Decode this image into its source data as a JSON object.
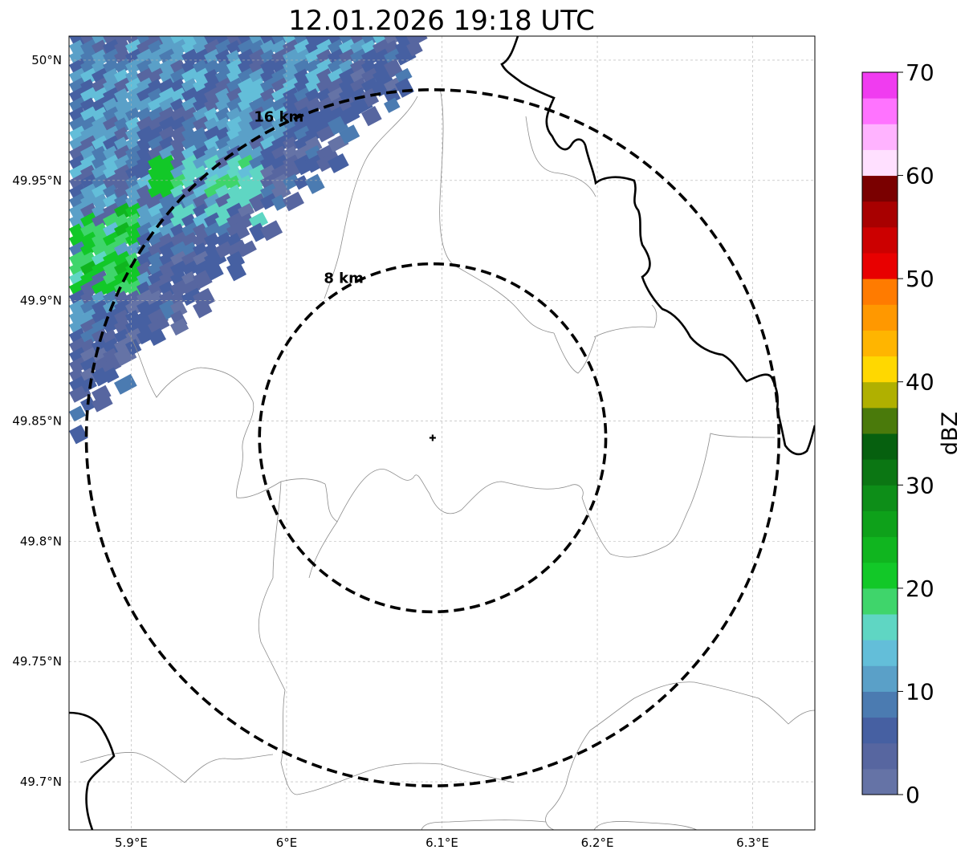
{
  "title": "12.01.2026 19:18 UTC",
  "map": {
    "extent": {
      "lon": [
        5.86,
        6.34
      ],
      "lat": [
        49.68,
        50.01
      ]
    },
    "gridlines": true,
    "lon_ticks": [
      {
        "value": 5.9,
        "label": "5.9°E"
      },
      {
        "value": 6.0,
        "label": "6°E"
      },
      {
        "value": 6.1,
        "label": "6.1°E"
      },
      {
        "value": 6.2,
        "label": "6.2°E"
      },
      {
        "value": 6.3,
        "label": "6.3°E"
      }
    ],
    "lat_ticks": [
      {
        "value": 50.0,
        "label": "50°N"
      },
      {
        "value": 49.95,
        "label": "49.95°N"
      },
      {
        "value": 49.9,
        "label": "49.9°N"
      },
      {
        "value": 49.85,
        "label": "49.85°N"
      },
      {
        "value": 49.8,
        "label": "49.8°N"
      },
      {
        "value": 49.75,
        "label": "49.75°N"
      },
      {
        "value": 49.7,
        "label": "49.7°N"
      }
    ],
    "center": {
      "lon": 6.094,
      "lat": 49.843
    },
    "center_marker": "plus-marker",
    "rings": [
      {
        "radius_km": 8,
        "label": "8 km"
      },
      {
        "radius_km": 16,
        "label": "16 km"
      }
    ],
    "ring_style": {
      "color": "#000000",
      "dash": "dashed"
    },
    "boundary_colors": {
      "national": "#000000",
      "regional": "#8c8c8c"
    },
    "reflectivity_region": "north-west corner"
  },
  "colorbar": {
    "label": "dBZ",
    "min": 0,
    "max": 70,
    "step": 2.5,
    "tick_values": [
      0,
      10,
      20,
      30,
      40,
      50,
      60,
      70
    ],
    "tick_labels": [
      "0",
      "10",
      "20",
      "30",
      "40",
      "50",
      "60",
      "70"
    ],
    "colors": [
      "#6573a6",
      "#5766a0",
      "#4660a2",
      "#4b7bb1",
      "#5aa0c8",
      "#63bed9",
      "#5fd6c3",
      "#3fd56b",
      "#12c828",
      "#10b51f",
      "#0ea11a",
      "#0d8e18",
      "#0b7613",
      "#06600f",
      "#4a7a0b",
      "#b0b000",
      "#ffd800",
      "#ffb500",
      "#ff9800",
      "#ff7b00",
      "#e80000",
      "#cc0000",
      "#a80000",
      "#7a0000",
      "#ffe0ff",
      "#ffb3ff",
      "#ff73ff",
      "#f03cf0"
    ]
  }
}
